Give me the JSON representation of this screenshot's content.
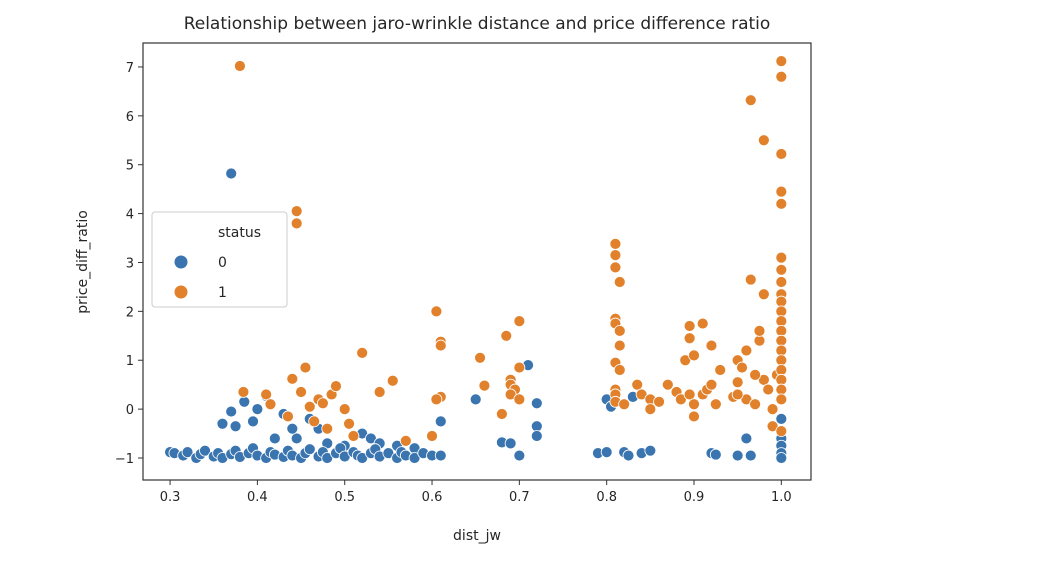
{
  "chart_data": {
    "type": "scatter",
    "title": "Relationship between jaro-wrinkle distance and price difference ratio",
    "xlabel": "dist_jw",
    "ylabel": "price_diff_ratio",
    "xlim": [
      0.269,
      1.034
    ],
    "ylim": [
      -1.45,
      7.49
    ],
    "xticks": [
      0.3,
      0.4,
      0.5,
      0.6,
      0.7,
      0.8,
      0.9,
      1.0
    ],
    "xtick_labels": [
      "0.3",
      "0.4",
      "0.5",
      "0.6",
      "0.7",
      "0.8",
      "0.9",
      "1.0"
    ],
    "yticks": [
      -1,
      0,
      1,
      2,
      3,
      4,
      5,
      6,
      7
    ],
    "ytick_labels": [
      "−1",
      "0",
      "1",
      "2",
      "3",
      "4",
      "5",
      "6",
      "7"
    ],
    "grid": false,
    "legend": {
      "title": "status",
      "placement": "center-left"
    },
    "series": [
      {
        "name": "0",
        "color": "#3a75b0",
        "points": [
          [
            0.37,
            4.82
          ],
          [
            0.36,
            -0.3
          ],
          [
            0.37,
            -0.05
          ],
          [
            0.375,
            -0.35
          ],
          [
            0.385,
            0.15
          ],
          [
            0.4,
            0.0
          ],
          [
            0.395,
            -0.25
          ],
          [
            0.41,
            0.27
          ],
          [
            0.42,
            -0.6
          ],
          [
            0.43,
            -0.1
          ],
          [
            0.445,
            -0.6
          ],
          [
            0.46,
            -0.2
          ],
          [
            0.47,
            -0.4
          ],
          [
            0.44,
            -0.4
          ],
          [
            0.48,
            -0.7
          ],
          [
            0.5,
            -0.75
          ],
          [
            0.52,
            -0.5
          ],
          [
            0.53,
            -0.6
          ],
          [
            0.54,
            -0.7
          ],
          [
            0.56,
            -0.75
          ],
          [
            0.58,
            -0.8
          ],
          [
            0.3,
            -0.88
          ],
          [
            0.305,
            -0.9
          ],
          [
            0.315,
            -0.95
          ],
          [
            0.32,
            -0.88
          ],
          [
            0.33,
            -1.0
          ],
          [
            0.335,
            -0.92
          ],
          [
            0.34,
            -0.85
          ],
          [
            0.35,
            -0.97
          ],
          [
            0.355,
            -0.9
          ],
          [
            0.36,
            -1.0
          ],
          [
            0.37,
            -0.92
          ],
          [
            0.375,
            -0.85
          ],
          [
            0.38,
            -0.98
          ],
          [
            0.39,
            -0.9
          ],
          [
            0.395,
            -0.8
          ],
          [
            0.4,
            -0.95
          ],
          [
            0.41,
            -1.0
          ],
          [
            0.415,
            -0.88
          ],
          [
            0.42,
            -0.93
          ],
          [
            0.43,
            -0.98
          ],
          [
            0.435,
            -0.85
          ],
          [
            0.44,
            -0.95
          ],
          [
            0.45,
            -1.0
          ],
          [
            0.455,
            -0.9
          ],
          [
            0.46,
            -0.82
          ],
          [
            0.47,
            -0.97
          ],
          [
            0.475,
            -0.88
          ],
          [
            0.48,
            -1.0
          ],
          [
            0.49,
            -0.9
          ],
          [
            0.495,
            -0.8
          ],
          [
            0.5,
            -0.97
          ],
          [
            0.51,
            -0.88
          ],
          [
            0.515,
            -0.95
          ],
          [
            0.52,
            -1.0
          ],
          [
            0.53,
            -0.9
          ],
          [
            0.535,
            -0.82
          ],
          [
            0.54,
            -0.97
          ],
          [
            0.55,
            -0.9
          ],
          [
            0.56,
            -1.0
          ],
          [
            0.565,
            -0.88
          ],
          [
            0.57,
            -0.95
          ],
          [
            0.58,
            -1.0
          ],
          [
            0.59,
            -0.9
          ],
          [
            0.6,
            -0.95
          ],
          [
            0.61,
            -0.95
          ],
          [
            0.61,
            -0.25
          ],
          [
            0.65,
            0.2
          ],
          [
            0.68,
            -0.68
          ],
          [
            0.69,
            -0.7
          ],
          [
            0.7,
            -0.95
          ],
          [
            0.71,
            0.9
          ],
          [
            0.72,
            0.12
          ],
          [
            0.72,
            -0.35
          ],
          [
            0.72,
            -0.55
          ],
          [
            0.79,
            -0.9
          ],
          [
            0.8,
            0.2
          ],
          [
            0.805,
            0.05
          ],
          [
            0.8,
            -0.88
          ],
          [
            0.82,
            -0.88
          ],
          [
            0.825,
            -0.95
          ],
          [
            0.83,
            0.25
          ],
          [
            0.84,
            -0.9
          ],
          [
            0.85,
            -0.85
          ],
          [
            0.92,
            -0.9
          ],
          [
            0.925,
            -0.93
          ],
          [
            0.95,
            -0.95
          ],
          [
            0.96,
            -0.6
          ],
          [
            0.965,
            -0.95
          ],
          [
            1.0,
            -0.2
          ],
          [
            1.0,
            -0.6
          ],
          [
            1.0,
            -0.75
          ],
          [
            1.0,
            -0.9
          ],
          [
            1.0,
            -1.0
          ]
        ]
      },
      {
        "name": "1",
        "color": "#e1812c",
        "points": [
          [
            0.38,
            7.02
          ],
          [
            0.445,
            4.05
          ],
          [
            0.445,
            3.8
          ],
          [
            0.384,
            0.35
          ],
          [
            0.41,
            0.3
          ],
          [
            0.415,
            0.1
          ],
          [
            0.435,
            -0.15
          ],
          [
            0.44,
            0.62
          ],
          [
            0.45,
            0.35
          ],
          [
            0.455,
            0.85
          ],
          [
            0.46,
            0.05
          ],
          [
            0.465,
            -0.25
          ],
          [
            0.47,
            0.2
          ],
          [
            0.475,
            0.12
          ],
          [
            0.48,
            -0.4
          ],
          [
            0.485,
            0.3
          ],
          [
            0.49,
            0.47
          ],
          [
            0.5,
            0.0
          ],
          [
            0.52,
            1.15
          ],
          [
            0.505,
            -0.3
          ],
          [
            0.51,
            -0.55
          ],
          [
            0.54,
            0.35
          ],
          [
            0.555,
            0.58
          ],
          [
            0.57,
            -0.65
          ],
          [
            0.6,
            -0.55
          ],
          [
            0.605,
            2.0
          ],
          [
            0.61,
            1.38
          ],
          [
            0.61,
            1.3
          ],
          [
            0.61,
            0.25
          ],
          [
            0.605,
            0.2
          ],
          [
            0.66,
            0.48
          ],
          [
            0.655,
            1.05
          ],
          [
            0.685,
            1.5
          ],
          [
            0.7,
            1.8
          ],
          [
            0.69,
            0.6
          ],
          [
            0.69,
            0.5
          ],
          [
            0.695,
            0.4
          ],
          [
            0.7,
            0.85
          ],
          [
            0.69,
            0.3
          ],
          [
            0.7,
            0.2
          ],
          [
            0.68,
            -0.1
          ],
          [
            0.81,
            3.38
          ],
          [
            0.81,
            3.15
          ],
          [
            0.81,
            2.9
          ],
          [
            0.815,
            2.6
          ],
          [
            0.81,
            1.85
          ],
          [
            0.81,
            1.75
          ],
          [
            0.815,
            1.6
          ],
          [
            0.815,
            1.3
          ],
          [
            0.81,
            0.95
          ],
          [
            0.815,
            0.8
          ],
          [
            0.81,
            0.4
          ],
          [
            0.81,
            0.3
          ],
          [
            0.81,
            0.15
          ],
          [
            0.82,
            0.1
          ],
          [
            0.835,
            0.5
          ],
          [
            0.84,
            0.3
          ],
          [
            0.85,
            0.2
          ],
          [
            0.85,
            0.0
          ],
          [
            0.86,
            0.15
          ],
          [
            0.87,
            0.5
          ],
          [
            0.88,
            0.35
          ],
          [
            0.885,
            0.2
          ],
          [
            0.89,
            1.0
          ],
          [
            0.895,
            1.7
          ],
          [
            0.895,
            1.45
          ],
          [
            0.9,
            1.1
          ],
          [
            0.895,
            0.3
          ],
          [
            0.9,
            0.1
          ],
          [
            0.9,
            -0.15
          ],
          [
            0.91,
            0.3
          ],
          [
            0.91,
            1.75
          ],
          [
            0.915,
            0.4
          ],
          [
            0.92,
            0.5
          ],
          [
            0.92,
            1.3
          ],
          [
            0.925,
            0.1
          ],
          [
            0.93,
            0.8
          ],
          [
            0.945,
            0.25
          ],
          [
            0.95,
            1.0
          ],
          [
            0.95,
            0.55
          ],
          [
            0.955,
            0.85
          ],
          [
            0.96,
            1.2
          ],
          [
            0.96,
            0.2
          ],
          [
            0.95,
            0.3
          ],
          [
            0.97,
            0.1
          ],
          [
            0.98,
            0.6
          ],
          [
            0.965,
            6.32
          ],
          [
            0.965,
            2.65
          ],
          [
            0.97,
            0.7
          ],
          [
            0.975,
            1.4
          ],
          [
            0.975,
            1.6
          ],
          [
            0.98,
            5.5
          ],
          [
            0.98,
            2.35
          ],
          [
            0.985,
            0.4
          ],
          [
            0.99,
            0.0
          ],
          [
            0.99,
            -0.35
          ],
          [
            0.995,
            0.7
          ],
          [
            1.0,
            7.12
          ],
          [
            1.0,
            6.8
          ],
          [
            1.0,
            5.22
          ],
          [
            1.0,
            4.45
          ],
          [
            1.0,
            4.2
          ],
          [
            1.0,
            3.1
          ],
          [
            1.0,
            2.85
          ],
          [
            1.0,
            2.6
          ],
          [
            1.0,
            2.35
          ],
          [
            1.0,
            2.2
          ],
          [
            1.0,
            2.0
          ],
          [
            1.0,
            1.8
          ],
          [
            1.0,
            1.6
          ],
          [
            1.0,
            1.4
          ],
          [
            1.0,
            1.2
          ],
          [
            1.0,
            1.0
          ],
          [
            1.0,
            0.8
          ],
          [
            1.0,
            0.6
          ],
          [
            1.0,
            0.4
          ],
          [
            1.0,
            0.2
          ],
          [
            1.0,
            -0.45
          ]
        ]
      }
    ]
  }
}
